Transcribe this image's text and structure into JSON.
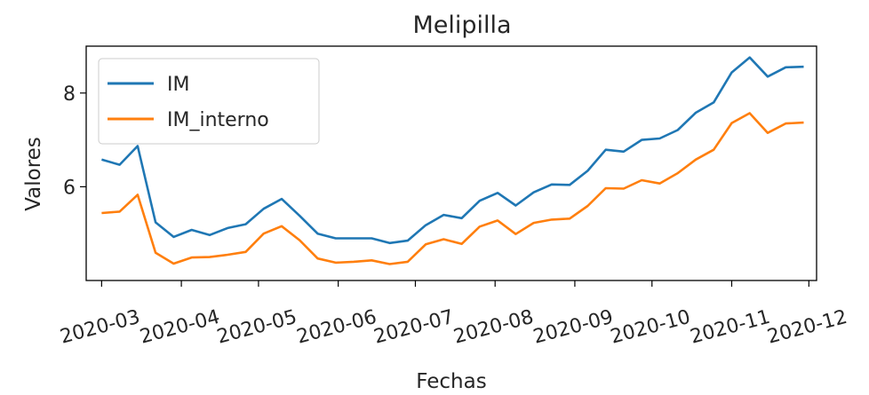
{
  "chart_data": {
    "type": "line",
    "title": "Melipilla",
    "xlabel": "Fechas",
    "ylabel": "Valores",
    "x_tick_labels": [
      "2020-03",
      "2020-04",
      "2020-05",
      "2020-06",
      "2020-07",
      "2020-08",
      "2020-09",
      "2020-10",
      "2020-11",
      "2020-12"
    ],
    "y_ticks": [
      6,
      8
    ],
    "y_tick_labels": [
      "6",
      "8"
    ],
    "xlim": [
      "2020-02-24",
      "2020-12-04"
    ],
    "ylim": [
      4.0,
      9.0
    ],
    "grid": false,
    "legend_position": "upper left",
    "x": [
      "2020-03-01",
      "2020-03-08",
      "2020-03-15",
      "2020-03-22",
      "2020-03-29",
      "2020-04-05",
      "2020-04-12",
      "2020-04-19",
      "2020-04-26",
      "2020-05-03",
      "2020-05-10",
      "2020-05-17",
      "2020-05-24",
      "2020-05-31",
      "2020-06-07",
      "2020-06-14",
      "2020-06-21",
      "2020-06-28",
      "2020-07-05",
      "2020-07-12",
      "2020-07-19",
      "2020-07-26",
      "2020-08-02",
      "2020-08-09",
      "2020-08-16",
      "2020-08-23",
      "2020-08-30",
      "2020-09-06",
      "2020-09-13",
      "2020-09-20",
      "2020-09-27",
      "2020-10-04",
      "2020-10-11",
      "2020-10-18",
      "2020-10-25",
      "2020-11-01",
      "2020-11-08",
      "2020-11-15",
      "2020-11-22",
      "2020-11-29"
    ],
    "series": [
      {
        "name": "IM",
        "color": "#1f77b4",
        "values": [
          6.58,
          6.47,
          6.87,
          5.24,
          4.93,
          5.08,
          4.97,
          5.12,
          5.2,
          5.53,
          5.74,
          5.38,
          5.0,
          4.9,
          4.9,
          4.9,
          4.8,
          4.85,
          5.18,
          5.4,
          5.33,
          5.7,
          5.87,
          5.6,
          5.88,
          6.05,
          6.04,
          6.34,
          6.79,
          6.75,
          7.0,
          7.03,
          7.21,
          7.58,
          7.8,
          8.44,
          8.76,
          8.35,
          8.55,
          8.56
        ]
      },
      {
        "name": "IM_interno",
        "color": "#ff7f0e",
        "values": [
          5.44,
          5.47,
          5.83,
          4.59,
          4.36,
          4.49,
          4.5,
          4.55,
          4.61,
          5.0,
          5.16,
          4.86,
          4.47,
          4.38,
          4.4,
          4.43,
          4.35,
          4.4,
          4.77,
          4.88,
          4.78,
          5.15,
          5.28,
          4.99,
          5.23,
          5.3,
          5.32,
          5.59,
          5.97,
          5.96,
          6.14,
          6.07,
          6.29,
          6.58,
          6.79,
          7.36,
          7.57,
          7.15,
          7.35,
          7.37
        ]
      }
    ]
  }
}
